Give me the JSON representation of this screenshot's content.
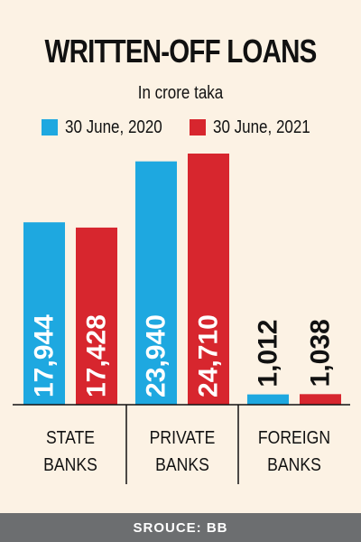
{
  "title": "WRITTEN-OFF LOANS",
  "subtitle": "In crore taka",
  "footer": "SROUCE: BB",
  "colors": {
    "series1": "#1ea8e0",
    "series2": "#d7262e"
  },
  "chart_data": {
    "type": "bar",
    "categories": [
      [
        "STATE",
        "BANKS"
      ],
      [
        "PRIVATE",
        "BANKS"
      ],
      [
        "FOREIGN",
        "BANKS"
      ]
    ],
    "series": [
      {
        "name": "30 June, 2020",
        "values": [
          17944,
          23940,
          1012
        ],
        "labels": [
          "17,944",
          "23,940",
          "1,012"
        ]
      },
      {
        "name": "30 June, 2021",
        "values": [
          17428,
          24710,
          1038
        ],
        "labels": [
          "17,428",
          "24,710",
          "1,038"
        ]
      }
    ],
    "title": "WRITTEN-OFF LOANS",
    "subtitle": "In crore taka",
    "ylim": [
      0,
      24710
    ],
    "grid": false,
    "legend": "top"
  }
}
